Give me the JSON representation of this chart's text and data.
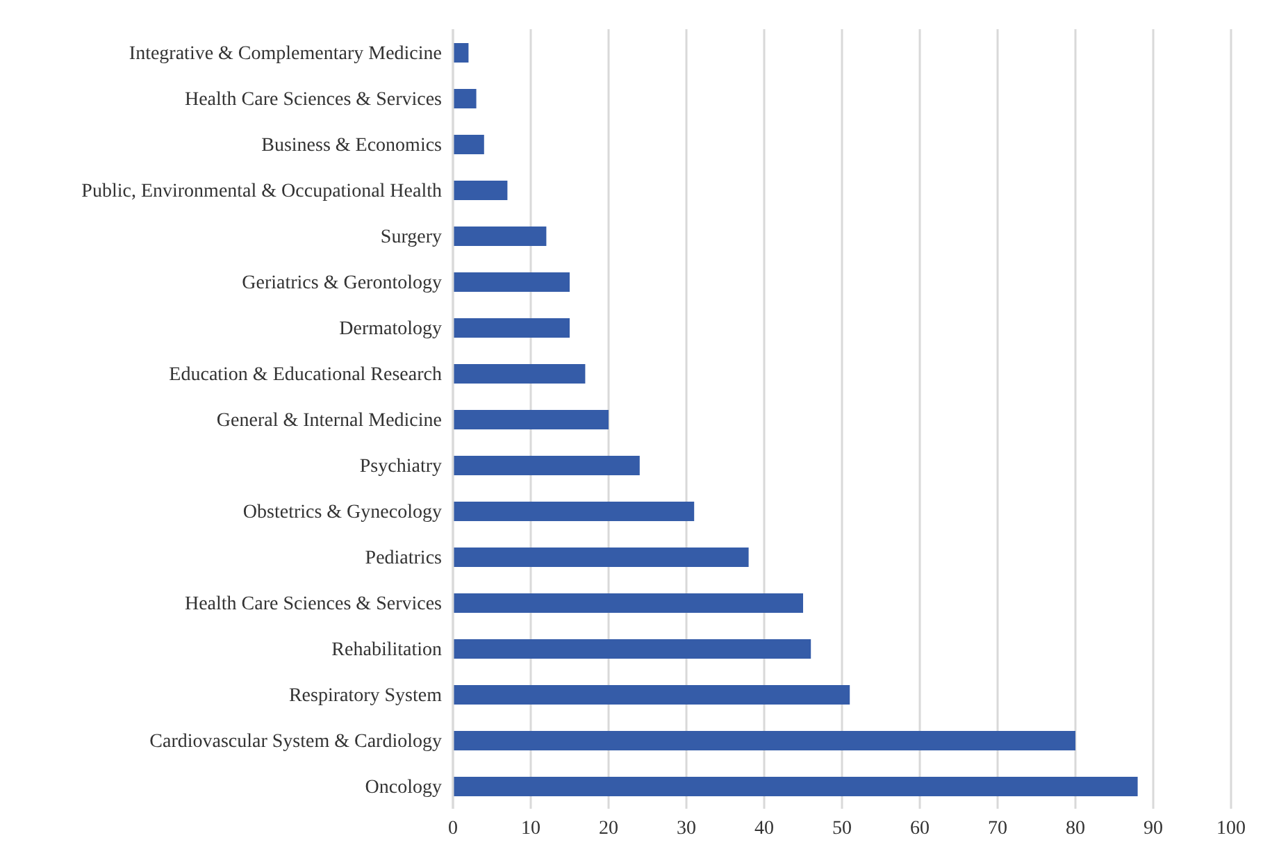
{
  "chart_data": {
    "type": "bar",
    "orientation": "horizontal",
    "categories": [
      "Integrative & Complementary Medicine",
      "Health Care Sciences & Services",
      "Business & Economics",
      "Public, Environmental & Occupational Health",
      "Surgery",
      "Geriatrics & Gerontology",
      "Dermatology",
      "Education & Educational Research",
      "General & Internal Medicine",
      "Psychiatry",
      "Obstetrics & Gynecology",
      "Pediatrics",
      "Health Care Sciences & Services",
      "Rehabilitation",
      "Respiratory System",
      "Cardiovascular System & Cardiology",
      "Oncology"
    ],
    "values": [
      2,
      3,
      4,
      7,
      12,
      15,
      15,
      17,
      20,
      24,
      31,
      38,
      45,
      46,
      51,
      80,
      88
    ],
    "color": "#355ca8",
    "xlim": [
      0,
      100
    ],
    "xticks": [
      0,
      10,
      20,
      30,
      40,
      50,
      60,
      70,
      80,
      90,
      100
    ],
    "grid": "x",
    "legend": false
  }
}
